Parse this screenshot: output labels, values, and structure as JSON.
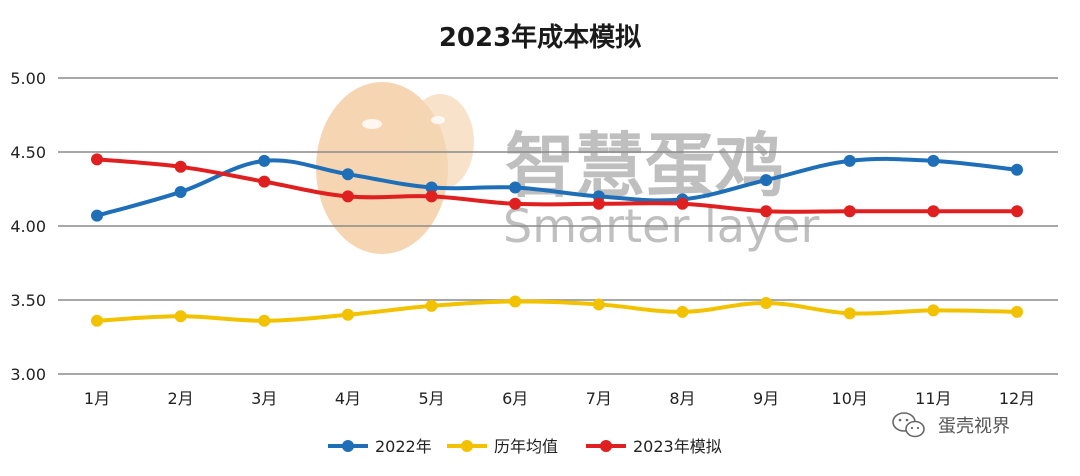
{
  "chart_data": {
    "type": "line",
    "title": "2023年成本模拟",
    "categories": [
      "1月",
      "2月",
      "3月",
      "4月",
      "5月",
      "6月",
      "7月",
      "8月",
      "9月",
      "10月",
      "11月",
      "12月"
    ],
    "ylim": [
      3.0,
      5.0
    ],
    "yticks": [
      "3.00",
      "3.50",
      "4.00",
      "4.50",
      "5.00"
    ],
    "ytick_values": [
      3.0,
      3.5,
      4.0,
      4.5,
      5.0
    ],
    "grid": true,
    "legend_position": "bottom",
    "series": [
      {
        "name": "2022年",
        "color": "#1f6fb8",
        "values": [
          4.07,
          4.23,
          4.44,
          4.35,
          4.26,
          4.26,
          4.2,
          4.18,
          4.31,
          4.44,
          4.44,
          4.38
        ]
      },
      {
        "name": "历年均值",
        "color": "#f2c200",
        "values": [
          3.36,
          3.39,
          3.36,
          3.4,
          3.46,
          3.49,
          3.47,
          3.42,
          3.48,
          3.41,
          3.43,
          3.42
        ]
      },
      {
        "name": "2023年模拟",
        "color": "#e02020",
        "values": [
          4.45,
          4.4,
          4.3,
          4.2,
          4.2,
          4.15,
          4.15,
          4.15,
          4.1,
          4.1,
          4.1,
          4.1
        ]
      }
    ]
  },
  "watermark": {
    "main_text": "智慧蛋鸡",
    "sub_text": "Smarter layer",
    "logo_color": "#f3c79a"
  },
  "source_badge": {
    "icon": "wechat-icon",
    "text": "蛋壳视界"
  }
}
